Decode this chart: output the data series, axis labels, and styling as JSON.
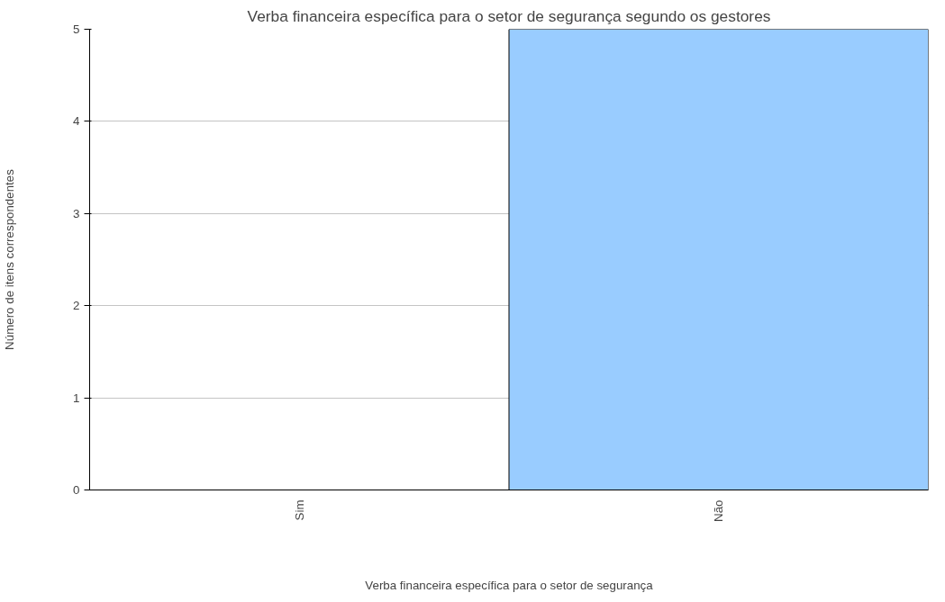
{
  "chart_data": {
    "type": "bar",
    "title": "Verba financeira específica para o setor de segurança segundo os gestores",
    "xlabel": "Verba financeira específica para o setor de segurança",
    "ylabel": "Número de itens correspondentes",
    "categories": [
      "Sim",
      "Não"
    ],
    "values": [
      0,
      5
    ],
    "color": "#99ccff",
    "ylim": [
      0,
      5
    ],
    "yticks": [
      0,
      1,
      2,
      3,
      4,
      5
    ],
    "grid": "y"
  }
}
